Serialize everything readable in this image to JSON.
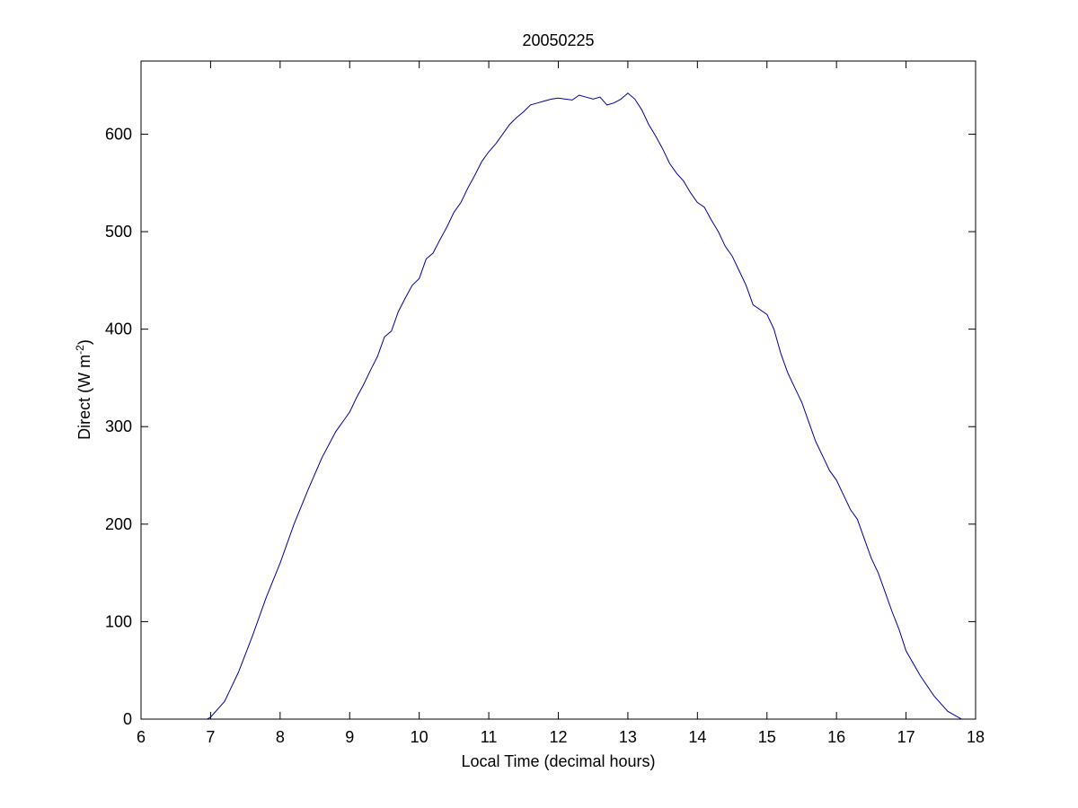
{
  "chart_data": {
    "type": "line",
    "title": "20050225",
    "xlabel": "Local Time (decimal hours)",
    "ylabel": {
      "main": "Direct (W m",
      "superscript": "-2",
      "close": ")"
    },
    "xlim": [
      6,
      18
    ],
    "ylim": [
      0,
      675
    ],
    "xticks": [
      6,
      7,
      8,
      9,
      10,
      11,
      12,
      13,
      14,
      15,
      16,
      17,
      18
    ],
    "yticks": [
      0,
      100,
      200,
      300,
      400,
      500,
      600
    ],
    "grid": false,
    "line_color": "#0000a0",
    "series": [
      {
        "x": [
          6.95,
          7.0,
          7.2,
          7.4,
          7.6,
          7.8,
          8.0,
          8.2,
          8.4,
          8.6,
          8.8,
          9.0,
          9.1,
          9.2,
          9.3,
          9.4,
          9.5,
          9.6,
          9.7,
          9.8,
          9.9,
          10.0,
          10.1,
          10.2,
          10.3,
          10.4,
          10.5,
          10.6,
          10.7,
          10.8,
          10.9,
          11.0,
          11.1,
          11.2,
          11.3,
          11.4,
          11.5,
          11.6,
          11.7,
          11.8,
          11.9,
          12.0,
          12.1,
          12.2,
          12.3,
          12.4,
          12.5,
          12.6,
          12.7,
          12.8,
          12.9,
          13.0,
          13.1,
          13.2,
          13.3,
          13.4,
          13.5,
          13.6,
          13.7,
          13.8,
          13.9,
          14.0,
          14.1,
          14.2,
          14.3,
          14.4,
          14.5,
          14.6,
          14.7,
          14.8,
          14.9,
          15.0,
          15.1,
          15.2,
          15.3,
          15.4,
          15.5,
          15.6,
          15.7,
          15.8,
          15.9,
          16.0,
          16.1,
          16.2,
          16.3,
          16.4,
          16.5,
          16.6,
          16.7,
          16.8,
          16.9,
          17.0,
          17.2,
          17.4,
          17.6,
          17.8,
          17.9
        ],
        "y": [
          0,
          2,
          18,
          48,
          85,
          125,
          160,
          200,
          235,
          268,
          295,
          315,
          330,
          343,
          358,
          372,
          392,
          398,
          418,
          432,
          445,
          452,
          472,
          478,
          492,
          505,
          520,
          530,
          545,
          558,
          572,
          582,
          590,
          600,
          610,
          617,
          623,
          630,
          632,
          634,
          636,
          637,
          636,
          635,
          640,
          638,
          636,
          638,
          630,
          632,
          636,
          642,
          636,
          625,
          610,
          598,
          585,
          570,
          560,
          552,
          540,
          530,
          525,
          512,
          500,
          485,
          475,
          460,
          445,
          425,
          420,
          415,
          400,
          375,
          355,
          340,
          325,
          305,
          285,
          270,
          255,
          245,
          230,
          215,
          205,
          185,
          165,
          150,
          130,
          110,
          92,
          70,
          45,
          24,
          8,
          0,
          0
        ]
      }
    ]
  }
}
